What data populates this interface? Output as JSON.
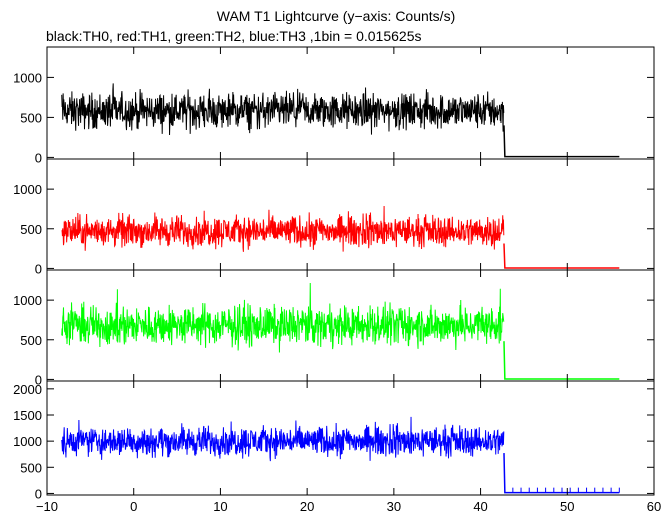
{
  "chart_data": {
    "type": "line",
    "title": "WAM T1 Lightcurve (y−axis: Counts/s)",
    "subtitle": "black:TH0, red:TH1, green:TH2, blue:TH3 ,1bin = 0.015625s",
    "xlim": [
      -10,
      60
    ],
    "x_ticks": [
      -10,
      0,
      10,
      20,
      30,
      40,
      50,
      60
    ],
    "x_tick_labels": [
      "−10",
      "0",
      "10",
      "20",
      "30",
      "40",
      "50",
      "60"
    ],
    "panels": [
      {
        "series": "TH0",
        "color": "#000000",
        "ylim": [
          -20,
          1380
        ],
        "y_ticks": [
          0,
          500,
          1000
        ],
        "y_tick_labels": [
          "0",
          "500",
          "1000"
        ],
        "active_x": [
          -8.3,
          42.7
        ],
        "active_level": 580,
        "active_spread": 300,
        "tail_level": 10,
        "tail_x": [
          42.8,
          56
        ]
      },
      {
        "series": "TH1",
        "color": "#ff0000",
        "ylim": [
          -20,
          1380
        ],
        "y_ticks": [
          0,
          500,
          1000
        ],
        "y_tick_labels": [
          "0",
          "500",
          "1000"
        ],
        "active_x": [
          -8.3,
          42.7
        ],
        "active_level": 470,
        "active_spread": 260,
        "tail_level": 5,
        "tail_x": [
          42.8,
          56
        ]
      },
      {
        "series": "TH2",
        "color": "#00ff00",
        "ylim": [
          -20,
          1380
        ],
        "y_ticks": [
          0,
          500,
          1000
        ],
        "y_tick_labels": [
          "0",
          "500",
          "1000"
        ],
        "active_x": [
          -8.3,
          42.7
        ],
        "active_level": 680,
        "active_spread": 330,
        "tail_level": 5,
        "tail_x": [
          42.8,
          56
        ]
      },
      {
        "series": "TH3",
        "color": "#0000ff",
        "ylim": [
          -30,
          2150
        ],
        "y_ticks": [
          0,
          500,
          1000,
          1500,
          2000
        ],
        "y_tick_labels": [
          "0",
          "500",
          "1000",
          "1500",
          "2000"
        ],
        "active_x": [
          -8.3,
          42.7
        ],
        "active_level": 1000,
        "active_spread": 380,
        "tail_level": 15,
        "tail_x": [
          42.8,
          56
        ]
      }
    ]
  }
}
